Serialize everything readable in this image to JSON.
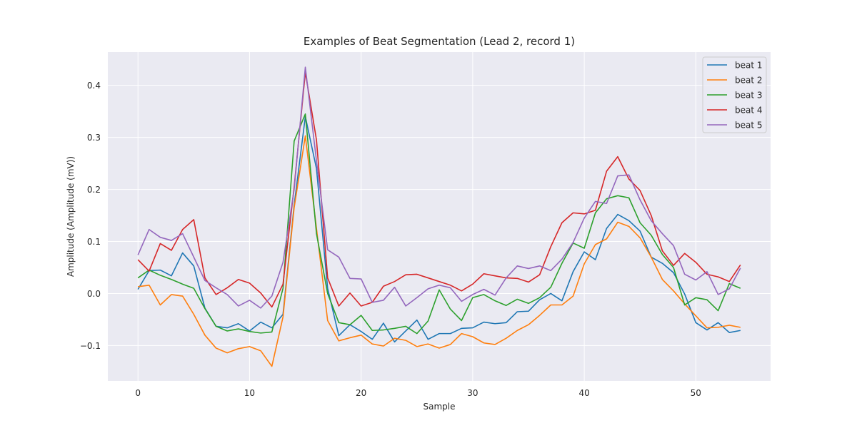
{
  "chart_data": {
    "type": "line",
    "title": "Examples of Beat Segmentation (Lead 2, record 1)",
    "xlabel": "Sample",
    "ylabel": "Amplitude (Amplitude (mV))",
    "xlim": [
      -2.7,
      56.7
    ],
    "ylim": [
      -0.168,
      0.464
    ],
    "xticks": [
      0,
      10,
      20,
      30,
      40,
      50
    ],
    "xtick_labels": [
      "0",
      "10",
      "20",
      "30",
      "40",
      "50"
    ],
    "yticks": [
      -0.1,
      0.0,
      0.1,
      0.2,
      0.3,
      0.4
    ],
    "ytick_labels": [
      "−0.1",
      "0.0",
      "0.1",
      "0.2",
      "0.3",
      "0.4"
    ],
    "grid": true,
    "legend_position": "top-right",
    "x": [
      0,
      1,
      2,
      3,
      4,
      5,
      6,
      7,
      8,
      9,
      10,
      11,
      12,
      13,
      14,
      15,
      16,
      17,
      18,
      19,
      20,
      21,
      22,
      23,
      24,
      25,
      26,
      27,
      28,
      29,
      30,
      31,
      32,
      33,
      34,
      35,
      36,
      37,
      38,
      39,
      40,
      41,
      42,
      43,
      44,
      45,
      46,
      47,
      48,
      49,
      50,
      51,
      52,
      53,
      54
    ],
    "series": [
      {
        "name": "beat 1",
        "color": "#1f77b4",
        "values": [
          0.008,
          0.044,
          0.045,
          0.034,
          0.078,
          0.053,
          -0.028,
          -0.063,
          -0.066,
          -0.058,
          -0.072,
          -0.055,
          -0.066,
          -0.04,
          0.17,
          0.34,
          0.24,
          0.01,
          -0.081,
          -0.06,
          -0.073,
          -0.088,
          -0.057,
          -0.093,
          -0.072,
          -0.051,
          -0.088,
          -0.077,
          -0.077,
          -0.067,
          -0.066,
          -0.055,
          -0.058,
          -0.056,
          -0.035,
          -0.034,
          -0.012,
          0.0,
          -0.014,
          0.042,
          0.08,
          0.065,
          0.125,
          0.152,
          0.14,
          0.12,
          0.07,
          0.058,
          0.04,
          -0.001,
          -0.056,
          -0.07,
          -0.056,
          -0.075,
          -0.071
        ]
      },
      {
        "name": "beat 2",
        "color": "#ff7f0e",
        "values": [
          0.013,
          0.016,
          -0.022,
          -0.002,
          -0.005,
          -0.04,
          -0.08,
          -0.105,
          -0.114,
          -0.106,
          -0.102,
          -0.11,
          -0.14,
          -0.045,
          0.165,
          0.303,
          0.125,
          -0.052,
          -0.091,
          -0.085,
          -0.08,
          -0.097,
          -0.101,
          -0.086,
          -0.09,
          -0.102,
          -0.097,
          -0.105,
          -0.098,
          -0.077,
          -0.083,
          -0.095,
          -0.098,
          -0.086,
          -0.071,
          -0.06,
          -0.042,
          -0.022,
          -0.022,
          -0.005,
          0.057,
          0.094,
          0.105,
          0.137,
          0.129,
          0.107,
          0.07,
          0.027,
          0.005,
          -0.02,
          -0.043,
          -0.066,
          -0.065,
          -0.061,
          -0.065
        ]
      },
      {
        "name": "beat 3",
        "color": "#2ca02c",
        "values": [
          0.03,
          0.045,
          0.035,
          0.027,
          0.018,
          0.01,
          -0.029,
          -0.063,
          -0.072,
          -0.068,
          -0.073,
          -0.076,
          -0.074,
          0.01,
          0.293,
          0.345,
          0.115,
          0.0,
          -0.056,
          -0.06,
          -0.042,
          -0.071,
          -0.07,
          -0.067,
          -0.063,
          -0.077,
          -0.053,
          0.007,
          -0.03,
          -0.052,
          -0.008,
          -0.002,
          -0.014,
          -0.023,
          -0.011,
          -0.019,
          -0.008,
          0.012,
          0.058,
          0.097,
          0.087,
          0.155,
          0.182,
          0.188,
          0.184,
          0.136,
          0.112,
          0.075,
          0.05,
          -0.022,
          -0.008,
          -0.012,
          -0.033,
          0.019,
          0.01
        ]
      },
      {
        "name": "beat 4",
        "color": "#d62728",
        "values": [
          0.065,
          0.043,
          0.096,
          0.083,
          0.123,
          0.142,
          0.03,
          -0.002,
          0.011,
          0.027,
          0.02,
          0.001,
          -0.026,
          0.018,
          0.205,
          0.425,
          0.295,
          0.03,
          -0.024,
          0.001,
          -0.024,
          -0.017,
          0.014,
          0.023,
          0.036,
          0.037,
          0.03,
          0.023,
          0.016,
          0.005,
          0.018,
          0.038,
          0.034,
          0.03,
          0.029,
          0.022,
          0.036,
          0.09,
          0.136,
          0.155,
          0.153,
          0.16,
          0.235,
          0.263,
          0.22,
          0.198,
          0.15,
          0.082,
          0.054,
          0.077,
          0.06,
          0.037,
          0.032,
          0.023,
          0.055
        ]
      },
      {
        "name": "beat 5",
        "color": "#9467bd",
        "values": [
          0.074,
          0.123,
          0.108,
          0.102,
          0.115,
          0.07,
          0.025,
          0.011,
          -0.002,
          -0.024,
          -0.013,
          -0.028,
          -0.005,
          0.06,
          0.2,
          0.435,
          0.255,
          0.084,
          0.07,
          0.029,
          0.028,
          -0.017,
          -0.013,
          0.012,
          -0.024,
          -0.008,
          0.009,
          0.016,
          0.011,
          -0.015,
          -0.002,
          0.008,
          -0.003,
          0.03,
          0.053,
          0.048,
          0.053,
          0.044,
          0.066,
          0.098,
          0.145,
          0.177,
          0.173,
          0.226,
          0.228,
          0.18,
          0.14,
          0.115,
          0.092,
          0.037,
          0.026,
          0.042,
          -0.002,
          0.009,
          0.049
        ]
      }
    ]
  }
}
